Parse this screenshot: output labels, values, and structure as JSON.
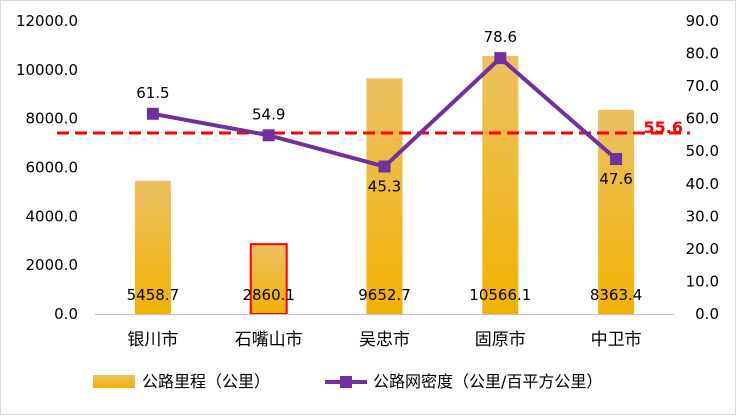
{
  "chart_data": {
    "type": "bar",
    "categories": [
      "银川市",
      "石嘴山市",
      "吴忠市",
      "固原市",
      "中卫市"
    ],
    "series": [
      {
        "name": "公路里程（公里）",
        "type": "bar",
        "axis": "left",
        "values": [
          5458.7,
          2860.1,
          9652.7,
          10566.1,
          8363.4
        ],
        "labels": [
          "5458.7",
          "2860.1",
          "9652.7",
          "10566.1",
          "8363.4"
        ],
        "highlighted_index": 1
      },
      {
        "name": "公路网密度（公里/百平方公里）",
        "type": "line",
        "axis": "right",
        "values": [
          61.5,
          54.9,
          45.3,
          78.6,
          47.6
        ],
        "labels": [
          "61.5",
          "54.9",
          "45.3",
          "78.6",
          "47.6"
        ]
      }
    ],
    "reference_line": {
      "axis": "right",
      "value": 55.6,
      "label": "55.6"
    },
    "y_left": {
      "min": 0,
      "max": 12000,
      "ticks": [
        "0.0",
        "2000.0",
        "4000.0",
        "6000.0",
        "8000.0",
        "10000.0",
        "12000.0"
      ]
    },
    "y_right": {
      "min": 0,
      "max": 90,
      "ticks": [
        "0.0",
        "10.0",
        "20.0",
        "30.0",
        "40.0",
        "50.0",
        "60.0",
        "70.0",
        "80.0",
        "90.0"
      ]
    },
    "legend_position": "bottom",
    "grid": false,
    "colors": {
      "bar_top": "#ecc063",
      "bar_bottom": "#f2b200",
      "line": "#7030a0",
      "reference": "#ff0000",
      "highlight_border": "#ff0000",
      "axis": "#c0c0c0",
      "text": "#000000"
    }
  }
}
